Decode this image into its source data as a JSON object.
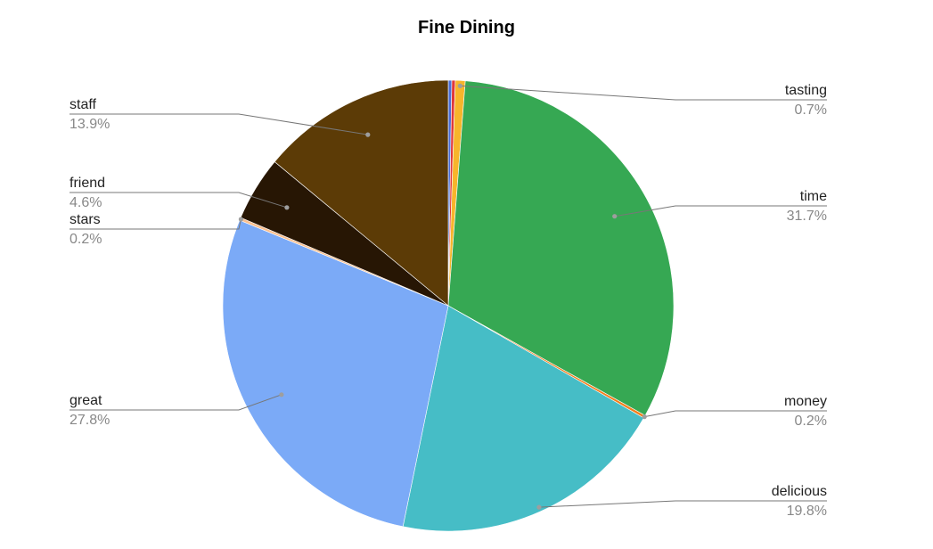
{
  "chart_data": {
    "type": "pie",
    "title": "Fine Dining",
    "start_angle_deg": 0,
    "direction": "clockwise",
    "slices": [
      {
        "label": "",
        "value": 0.25,
        "display": "",
        "color": "#4a6fd8",
        "callout": false
      },
      {
        "label": "",
        "value": 0.25,
        "display": "",
        "color": "#e0383b",
        "callout": false
      },
      {
        "label": "tasting",
        "value": 0.7,
        "display": "0.7%",
        "color": "#f7b52b",
        "callout": true,
        "side": "right"
      },
      {
        "label": "time",
        "value": 31.7,
        "display": "31.7%",
        "color": "#36a853",
        "callout": true,
        "side": "right"
      },
      {
        "label": "money",
        "value": 0.2,
        "display": "0.2%",
        "color": "#f37f1d",
        "callout": true,
        "side": "right"
      },
      {
        "label": "delicious",
        "value": 19.8,
        "display": "19.8%",
        "color": "#46bdc6",
        "callout": true,
        "side": "right"
      },
      {
        "label": "great",
        "value": 27.8,
        "display": "27.8%",
        "color": "#7baaf7",
        "callout": true,
        "side": "left"
      },
      {
        "label": "stars",
        "value": 0.2,
        "display": "0.2%",
        "color": "#fbbf8e",
        "callout": true,
        "side": "left"
      },
      {
        "label": "friend",
        "value": 4.6,
        "display": "4.6%",
        "color": "#271604",
        "callout": true,
        "side": "left"
      },
      {
        "label": "staff",
        "value": 13.9,
        "display": "13.9%",
        "color": "#5c3b06",
        "callout": true,
        "side": "left"
      }
    ],
    "legend": "none"
  }
}
